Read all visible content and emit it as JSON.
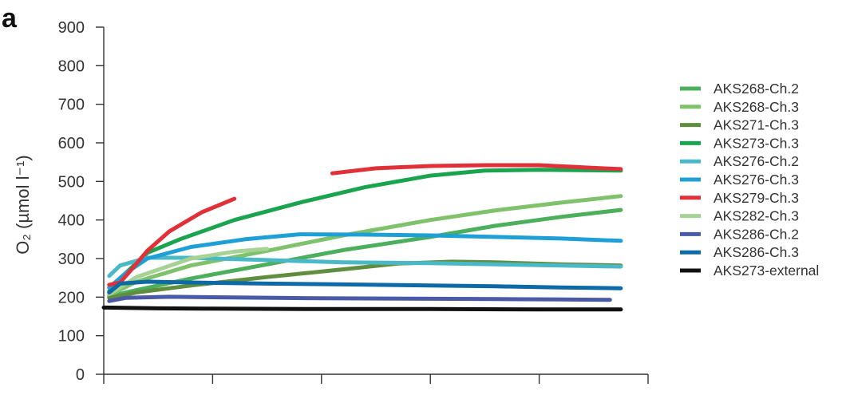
{
  "panel_label": "a",
  "chart_data": {
    "type": "line",
    "title": "",
    "xlabel": "",
    "ylabel": "O₂ (µmol l⁻¹)",
    "ylim": [
      0,
      900
    ],
    "yticks": [
      0,
      100,
      200,
      300,
      400,
      500,
      600,
      700,
      800,
      900
    ],
    "ytick_labels": [
      "0",
      "100",
      "200",
      "300",
      "400",
      "500",
      "600",
      "700",
      "800",
      "900"
    ],
    "xlim": [
      0,
      5
    ],
    "xticks": [
      0,
      1,
      2,
      3,
      4,
      5
    ],
    "xtick_labels": [],
    "grid": false,
    "legend_position": "right",
    "series": [
      {
        "name": "AKS268-Ch.2",
        "color": "#4caf5c",
        "x": [
          0.05,
          0.3,
          0.8,
          1.5,
          2.2,
          3.0,
          3.6,
          4.2,
          4.75
        ],
        "values": [
          202,
          218,
          248,
          285,
          322,
          356,
          385,
          408,
          426
        ]
      },
      {
        "name": "AKS268-Ch.3",
        "color": "#7fc26b",
        "x": [
          0.05,
          0.3,
          0.8,
          1.5,
          2.2,
          3.0,
          3.6,
          4.2,
          4.75
        ],
        "values": [
          205,
          240,
          282,
          320,
          360,
          400,
          425,
          445,
          462
        ]
      },
      {
        "name": "AKS271-Ch.3",
        "color": "#5f8f3e",
        "x": [
          0.05,
          0.3,
          0.8,
          1.5,
          2.2,
          2.7,
          3.2,
          3.6,
          4.2,
          4.75
        ],
        "values": [
          198,
          212,
          230,
          252,
          272,
          287,
          292,
          290,
          285,
          282
        ]
      },
      {
        "name": "AKS273-Ch.3",
        "color": "#1aa44e",
        "x": [
          0.05,
          0.2,
          0.4,
          0.7,
          1.2,
          1.8,
          2.4,
          3.0,
          3.5,
          4.0,
          4.75
        ],
        "values": [
          215,
          262,
          315,
          350,
          400,
          445,
          485,
          515,
          528,
          530,
          528
        ]
      },
      {
        "name": "AKS276-Ch.2",
        "color": "#4bb8c8",
        "x": [
          0.05,
          0.15,
          0.4,
          0.8,
          1.5,
          2.2,
          3.0,
          3.6,
          4.2,
          4.75
        ],
        "values": [
          255,
          282,
          302,
          302,
          296,
          290,
          288,
          285,
          282,
          279
        ]
      },
      {
        "name": "AKS276-Ch.3",
        "color": "#1ea0d6",
        "x": [
          0.05,
          0.2,
          0.4,
          0.8,
          1.3,
          1.8,
          2.4,
          3.0,
          3.6,
          4.2,
          4.75
        ],
        "values": [
          225,
          262,
          300,
          330,
          350,
          363,
          362,
          360,
          356,
          352,
          346
        ]
      },
      {
        "name": "AKS279-Ch.3",
        "color": "#e03038",
        "segments": [
          {
            "x": [
              0.05,
              0.15,
              0.25,
              0.4,
              0.6,
              0.9,
              1.2
            ],
            "values": [
              232,
              238,
              270,
              320,
              370,
              420,
              455
            ]
          },
          {
            "x": [
              2.1,
              2.5,
              3.0,
              3.5,
              4.0,
              4.5,
              4.75
            ],
            "values": [
              521,
              534,
              540,
              542,
              542,
              535,
              532
            ]
          }
        ]
      },
      {
        "name": "AKS282-Ch.3",
        "color": "#a6d395",
        "x": [
          0.05,
          0.3,
          0.8,
          1.2,
          1.5
        ],
        "values": [
          208,
          252,
          300,
          318,
          325
        ]
      },
      {
        "name": "AKS286-Ch.2",
        "color": "#4a5aa6",
        "x": [
          0.05,
          0.2,
          0.6,
          1.2,
          2.0,
          2.8,
          3.6,
          4.2,
          4.65
        ],
        "values": [
          190,
          198,
          201,
          199,
          197,
          196,
          195,
          194,
          193
        ]
      },
      {
        "name": "AKS286-Ch.3",
        "color": "#0d6aa6",
        "x": [
          0.05,
          0.15,
          0.4,
          0.8,
          1.5,
          2.2,
          3.0,
          3.6,
          4.2,
          4.75
        ],
        "values": [
          212,
          235,
          240,
          238,
          235,
          233,
          230,
          228,
          225,
          223
        ]
      },
      {
        "name": "AKS273-external",
        "color": "#111111",
        "x": [
          0.0,
          0.5,
          1.0,
          2.0,
          3.0,
          4.0,
          4.75
        ],
        "values": [
          173,
          171,
          170,
          169,
          169,
          168,
          168
        ]
      }
    ]
  }
}
